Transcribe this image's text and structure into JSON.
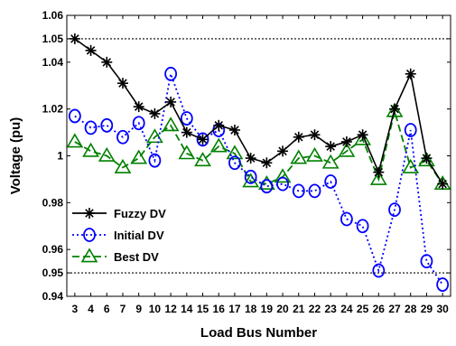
{
  "chart_data": {
    "type": "line",
    "xlabel": "Load Bus Number",
    "ylabel": "Voltage (pu)",
    "categories": [
      "3",
      "4",
      "6",
      "7",
      "9",
      "10",
      "12",
      "14",
      "15",
      "16",
      "17",
      "18",
      "19",
      "20",
      "21",
      "22",
      "23",
      "24",
      "25",
      "26",
      "27",
      "28",
      "29",
      "30"
    ],
    "y_ticks": [
      0.94,
      0.95,
      0.96,
      0.98,
      1,
      1.02,
      1.04,
      1.05,
      1.06
    ],
    "y_tick_labels": [
      "0.94",
      "0.95",
      "0.96",
      "0.98",
      "1",
      "1.02",
      "1.04",
      "1.05",
      "1.06"
    ],
    "ylim": [
      0.94,
      1.06
    ],
    "reference_lines": [
      1.05,
      0.95
    ],
    "legend_position": "bottom-left",
    "series": [
      {
        "name": "Fuzzy DV",
        "color": "#000000",
        "line_style": "solid",
        "marker": "asterisk",
        "values": [
          1.05,
          1.045,
          1.04,
          1.031,
          1.021,
          1.018,
          1.023,
          1.01,
          1.007,
          1.013,
          1.011,
          0.999,
          0.997,
          1.002,
          1.008,
          1.009,
          1.004,
          1.006,
          1.009,
          0.993,
          1.02,
          1.035,
          0.999,
          0.988
        ]
      },
      {
        "name": "Initial DV",
        "color": "#0000ff",
        "line_style": "dotted",
        "marker": "circle",
        "values": [
          1.017,
          1.012,
          1.013,
          1.008,
          1.014,
          0.998,
          1.035,
          1.016,
          1.007,
          1.011,
          0.997,
          0.991,
          0.987,
          0.988,
          0.985,
          0.985,
          0.989,
          0.973,
          0.97,
          0.951,
          0.977,
          1.011,
          0.955,
          0.945
        ]
      },
      {
        "name": "Best DV",
        "color": "#008000",
        "line_style": "dashed",
        "marker": "triangle",
        "values": [
          1.006,
          1.002,
          1.0,
          0.995,
          0.999,
          1.008,
          1.013,
          1.001,
          0.998,
          1.004,
          1.001,
          0.989,
          0.988,
          0.991,
          0.999,
          1.0,
          0.997,
          1.002,
          1.007,
          0.99,
          1.019,
          0.995,
          0.998,
          0.988
        ]
      }
    ]
  }
}
